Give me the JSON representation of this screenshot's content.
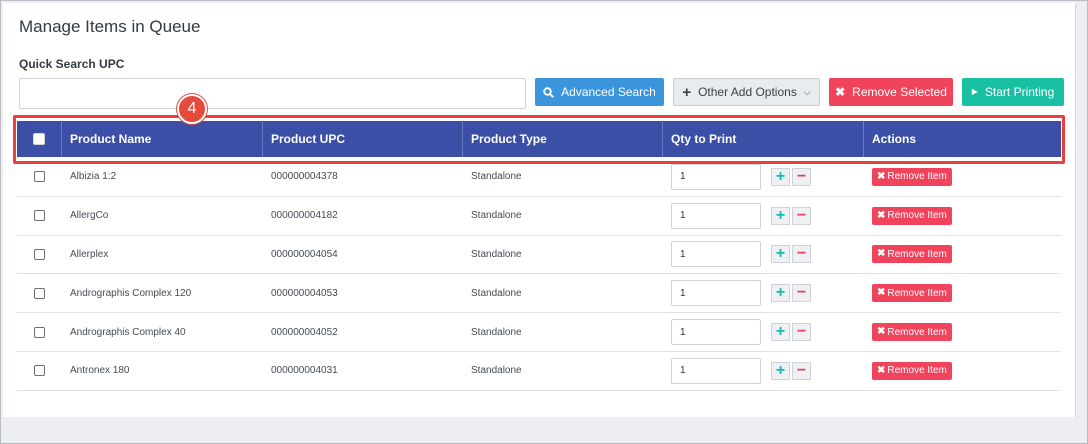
{
  "page": {
    "title": "Manage Items in Queue",
    "search_label": "Quick Search UPC",
    "search_placeholder": "",
    "search_value": ""
  },
  "toolbar": {
    "advanced_search": "Advanced Search",
    "other_add_options": "Other Add Options",
    "remove_selected": "Remove Selected",
    "start_printing": "Start Printing"
  },
  "callout": {
    "number": "4"
  },
  "table": {
    "headers": [
      "Product Name",
      "Product UPC",
      "Product Type",
      "Qty to Print",
      "Actions"
    ],
    "remove_item_label": "Remove Item",
    "rows": [
      {
        "name": "Albizia 1:2",
        "upc": "000000004378",
        "type": "Standalone",
        "qty": "1"
      },
      {
        "name": "AllergCo",
        "upc": "000000004182",
        "type": "Standalone",
        "qty": "1"
      },
      {
        "name": "Allerplex",
        "upc": "000000004054",
        "type": "Standalone",
        "qty": "1"
      },
      {
        "name": "Andrographis Complex 120",
        "upc": "000000004053",
        "type": "Standalone",
        "qty": "1"
      },
      {
        "name": "Andrographis Complex 40",
        "upc": "000000004052",
        "type": "Standalone",
        "qty": "1"
      },
      {
        "name": "Antronex 180",
        "upc": "000000004031",
        "type": "Standalone",
        "qty": "1"
      }
    ]
  },
  "colors": {
    "header_bg": "#3c4fa7",
    "advanced_search": "#3a95dc",
    "remove": "#f0435c",
    "start_printing": "#19c0a3",
    "highlight": "#e8403f"
  },
  "icons": {
    "advanced_search": "search-icon",
    "other_add_options": "plus-icon",
    "other_add_options_caret": "chevron-down-icon",
    "remove_selected": "close-icon",
    "start_printing": "play-icon",
    "qty_increase": "plus-icon",
    "qty_decrease": "minus-icon",
    "remove_item": "close-icon"
  }
}
